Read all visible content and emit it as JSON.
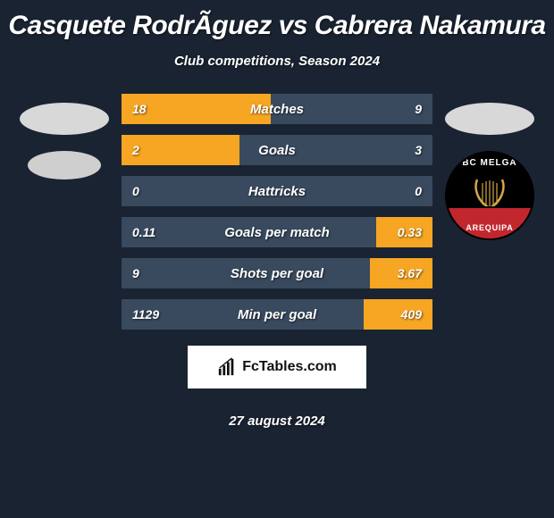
{
  "title": "Casquete RodrÃ­guez vs Cabrera Nakamura",
  "subtitle": "Club competitions, Season 2024",
  "date": "27 august 2024",
  "brand": "FcTables.com",
  "colors": {
    "background": "#1a2332",
    "bar_bg": "#394a5e",
    "bar_fill": "#f6a623",
    "text": "#ffffff",
    "brand_bg": "#ffffff",
    "brand_text": "#111111",
    "club_red": "#c1272d",
    "club_black": "#000000"
  },
  "right_club": {
    "top_text": "BC MELGA",
    "bottom_text": "AREQUIPA"
  },
  "stats": [
    {
      "label": "Matches",
      "left_val": "18",
      "right_val": "9",
      "left_pct": 48,
      "right_pct": 0
    },
    {
      "label": "Goals",
      "left_val": "2",
      "right_val": "3",
      "left_pct": 38,
      "right_pct": 0
    },
    {
      "label": "Hattricks",
      "left_val": "0",
      "right_val": "0",
      "left_pct": 0,
      "right_pct": 0
    },
    {
      "label": "Goals per match",
      "left_val": "0.11",
      "right_val": "0.33",
      "left_pct": 0,
      "right_pct": 18
    },
    {
      "label": "Shots per goal",
      "left_val": "9",
      "right_val": "3.67",
      "left_pct": 0,
      "right_pct": 20
    },
    {
      "label": "Min per goal",
      "left_val": "1129",
      "right_val": "409",
      "left_pct": 0,
      "right_pct": 22
    }
  ]
}
